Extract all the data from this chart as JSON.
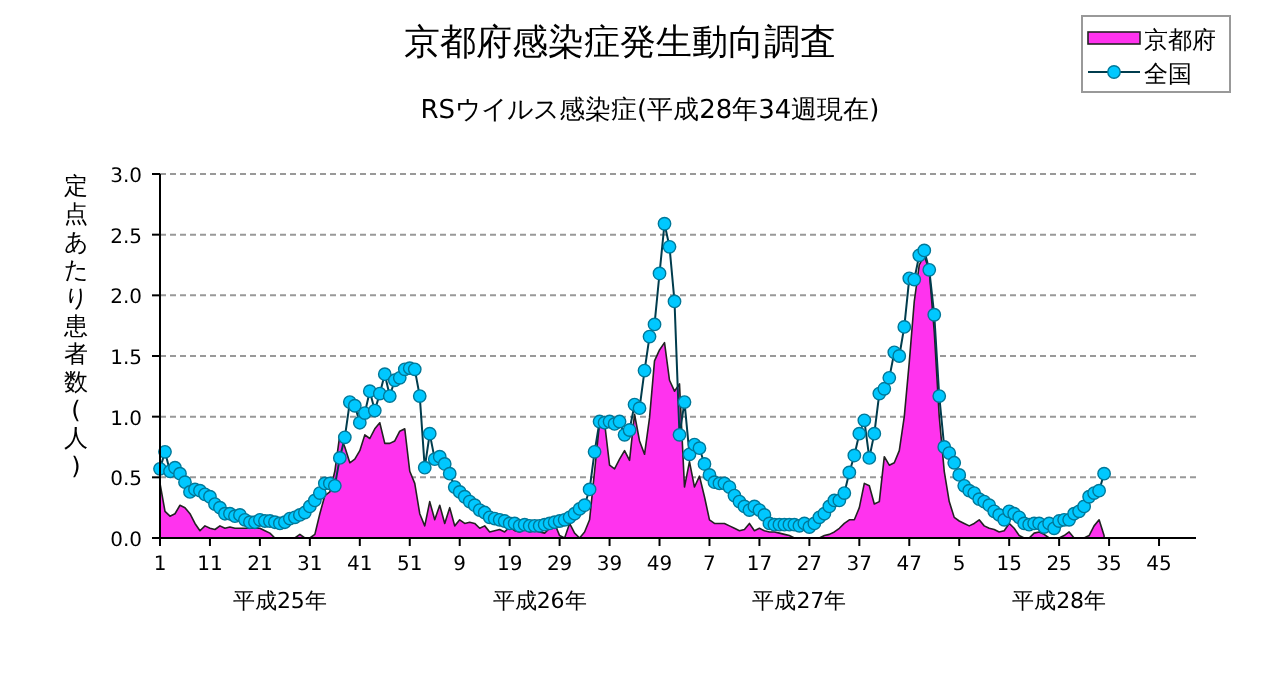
{
  "chart_data": {
    "type": "area",
    "title": "京都府感染症発生動向調査",
    "subtitle": "RSウイルス感染症(平成28年34週現在)",
    "ylabel": "定点あたり患者数(人)",
    "categories": [
      "1",
      null,
      null,
      null,
      null,
      null,
      null,
      null,
      null,
      null,
      "11",
      null,
      null,
      null,
      null,
      null,
      null,
      null,
      null,
      null,
      "21",
      null,
      null,
      null,
      null,
      null,
      null,
      null,
      null,
      null,
      "31",
      null,
      null,
      null,
      null,
      null,
      null,
      null,
      null,
      null,
      "41",
      null,
      null,
      null,
      null,
      null,
      null,
      null,
      null,
      null,
      "51",
      null,
      null,
      null,
      null,
      null,
      null,
      null,
      null,
      null,
      "9",
      null,
      null,
      null,
      null,
      null,
      null,
      null,
      null,
      null,
      "19",
      null,
      null,
      null,
      null,
      null,
      null,
      null,
      null,
      null,
      "29",
      null,
      null,
      null,
      null,
      null,
      null,
      null,
      null,
      null,
      "39",
      null,
      null,
      null,
      null,
      null,
      null,
      null,
      null,
      null,
      "49",
      null,
      null,
      null,
      null,
      null,
      null,
      null,
      null,
      null,
      "7",
      null,
      null,
      null,
      null,
      null,
      null,
      null,
      null,
      null,
      "17",
      null,
      null,
      null,
      null,
      null,
      null,
      null,
      null,
      null,
      "27",
      null,
      null,
      null,
      null,
      null,
      null,
      null,
      null,
      null,
      "37",
      null,
      null,
      null,
      null,
      null,
      null,
      null,
      null,
      null,
      "47",
      null,
      null,
      null,
      null,
      null,
      null,
      null,
      null,
      null,
      "5",
      null,
      null,
      null,
      null,
      null,
      null,
      null,
      null,
      null,
      "15",
      null,
      null,
      null,
      null,
      null,
      null,
      null,
      null,
      null,
      "25",
      null,
      null,
      null,
      null,
      null,
      null,
      null,
      null,
      null,
      "35",
      null,
      null,
      null,
      null,
      null,
      null,
      null,
      null,
      null,
      "45",
      null,
      null,
      null,
      null,
      null,
      null,
      null
    ],
    "series": [
      {
        "name": "京都府",
        "color": "#ff33ee",
        "values": [
          0.45,
          0.22,
          0.18,
          0.2,
          0.27,
          0.25,
          0.2,
          0.12,
          0.06,
          0.1,
          0.08,
          0.07,
          0.1,
          0.08,
          0.09,
          0.08,
          0.08,
          0.08,
          0.08,
          0.08,
          0.08,
          0.06,
          0.04,
          0.0,
          0.0,
          0.0,
          0.0,
          0.0,
          0.03,
          0.0,
          0.0,
          0.03,
          0.2,
          0.35,
          0.38,
          0.55,
          0.85,
          0.75,
          0.62,
          0.65,
          0.72,
          0.85,
          0.82,
          0.9,
          0.95,
          0.78,
          0.78,
          0.8,
          0.88,
          0.9,
          0.55,
          0.45,
          0.2,
          0.1,
          0.3,
          0.15,
          0.27,
          0.12,
          0.25,
          0.1,
          0.15,
          0.12,
          0.13,
          0.12,
          0.08,
          0.1,
          0.05,
          0.06,
          0.07,
          0.05,
          0.09,
          0.06,
          0.05,
          0.07,
          0.05,
          0.06,
          0.05,
          0.04,
          0.08,
          0.12,
          0.02,
          0.0,
          0.12,
          0.04,
          0.0,
          0.05,
          0.15,
          0.55,
          0.95,
          0.95,
          0.6,
          0.57,
          0.65,
          0.72,
          0.64,
          1.02,
          0.8,
          0.69,
          0.99,
          1.46,
          1.55,
          1.61,
          1.3,
          1.21,
          1.27,
          0.42,
          0.63,
          0.42,
          0.51,
          0.34,
          0.15,
          0.12,
          0.12,
          0.12,
          0.1,
          0.08,
          0.06,
          0.07,
          0.12,
          0.06,
          0.08,
          0.06,
          0.05,
          0.05,
          0.04,
          0.03,
          0.02,
          0.0,
          0.0,
          0.0,
          0.0,
          0.0,
          0.0,
          0.02,
          0.03,
          0.05,
          0.08,
          0.12,
          0.15,
          0.15,
          0.25,
          0.45,
          0.43,
          0.28,
          0.3,
          0.67,
          0.6,
          0.62,
          0.72,
          1.0,
          1.45,
          1.95,
          2.25,
          2.33,
          2.2,
          1.7,
          1.0,
          0.55,
          0.3,
          0.17,
          0.14,
          0.12,
          0.1,
          0.12,
          0.15,
          0.1,
          0.08,
          0.07,
          0.05,
          0.06,
          0.12,
          0.08,
          0.02,
          0.0,
          0.0,
          0.04,
          0.05,
          0.03,
          0.0,
          0.0,
          0.0,
          0.02,
          0.05,
          0.0,
          0.0,
          0.0,
          0.02,
          0.1,
          0.15,
          0.02,
          null,
          null,
          null,
          null,
          null,
          null,
          null,
          null,
          null,
          null,
          null,
          null,
          null,
          null,
          null,
          null,
          null,
          null
        ]
      },
      {
        "name": "全国",
        "type": "line",
        "marker": "circle",
        "color": "#00c8ff",
        "values": [
          0.57,
          0.71,
          0.55,
          0.58,
          0.53,
          0.46,
          0.38,
          0.4,
          0.39,
          0.36,
          0.34,
          0.28,
          0.25,
          0.2,
          0.2,
          0.18,
          0.19,
          0.15,
          0.13,
          0.13,
          0.15,
          0.14,
          0.14,
          0.13,
          0.12,
          0.13,
          0.16,
          0.17,
          0.19,
          0.21,
          0.26,
          0.31,
          0.37,
          0.45,
          0.45,
          0.43,
          0.66,
          0.83,
          1.12,
          1.09,
          0.95,
          1.03,
          1.21,
          1.05,
          1.19,
          1.35,
          1.17,
          1.3,
          1.32,
          1.39,
          1.4,
          1.39,
          1.17,
          0.58,
          0.86,
          0.65,
          0.67,
          0.61,
          0.53,
          0.42,
          0.38,
          0.34,
          0.3,
          0.27,
          0.23,
          0.21,
          0.17,
          0.16,
          0.15,
          0.14,
          0.12,
          0.12,
          0.1,
          0.11,
          0.1,
          0.1,
          0.1,
          0.11,
          0.12,
          0.13,
          0.14,
          0.15,
          0.17,
          0.2,
          0.24,
          0.27,
          0.4,
          0.71,
          0.96,
          0.95,
          0.96,
          0.94,
          0.96,
          0.85,
          0.89,
          1.1,
          1.07,
          1.38,
          1.66,
          1.76,
          2.18,
          2.59,
          2.4,
          1.95,
          0.85,
          1.12,
          0.69,
          0.77,
          0.74,
          0.61,
          0.52,
          0.46,
          0.45,
          0.45,
          0.42,
          0.35,
          0.3,
          0.26,
          0.23,
          0.26,
          0.23,
          0.19,
          0.12,
          0.11,
          0.11,
          0.11,
          0.11,
          0.11,
          0.1,
          0.12,
          0.09,
          0.12,
          0.17,
          0.2,
          0.26,
          0.31,
          0.31,
          0.37,
          0.54,
          0.68,
          0.86,
          0.97,
          0.66,
          0.86,
          1.19,
          1.23,
          1.32,
          1.53,
          1.5,
          1.74,
          2.14,
          2.13,
          2.33,
          2.37,
          2.21,
          1.84,
          1.17,
          0.75,
          0.7,
          0.62,
          0.52,
          0.43,
          0.39,
          0.37,
          0.32,
          0.3,
          0.27,
          0.22,
          0.19,
          0.15,
          0.22,
          0.2,
          0.17,
          0.12,
          0.11,
          0.12,
          0.12,
          0.09,
          0.12,
          0.08,
          0.14,
          0.15,
          0.15,
          0.2,
          0.22,
          0.26,
          0.34,
          0.37,
          0.39,
          0.53,
          null,
          null,
          null,
          null,
          null,
          null,
          null,
          null,
          null,
          null,
          null,
          null,
          null,
          null,
          null,
          null,
          null,
          null
        ]
      }
    ],
    "ylim": [
      0,
      3
    ],
    "yticks": [
      {
        "value": 0,
        "label": "0.0"
      },
      {
        "value": 0.5,
        "label": "0.5"
      },
      {
        "value": 1,
        "label": "1.0"
      },
      {
        "value": 1.5,
        "label": "1.5"
      },
      {
        "value": 2,
        "label": "2.0"
      },
      {
        "value": 2.5,
        "label": "2.5"
      },
      {
        "value": 3,
        "label": "3.0"
      }
    ],
    "grid": "y",
    "legend": "top right",
    "annotations": [
      "平成25年",
      "平成26年",
      "平成27年",
      "平成28年"
    ]
  }
}
